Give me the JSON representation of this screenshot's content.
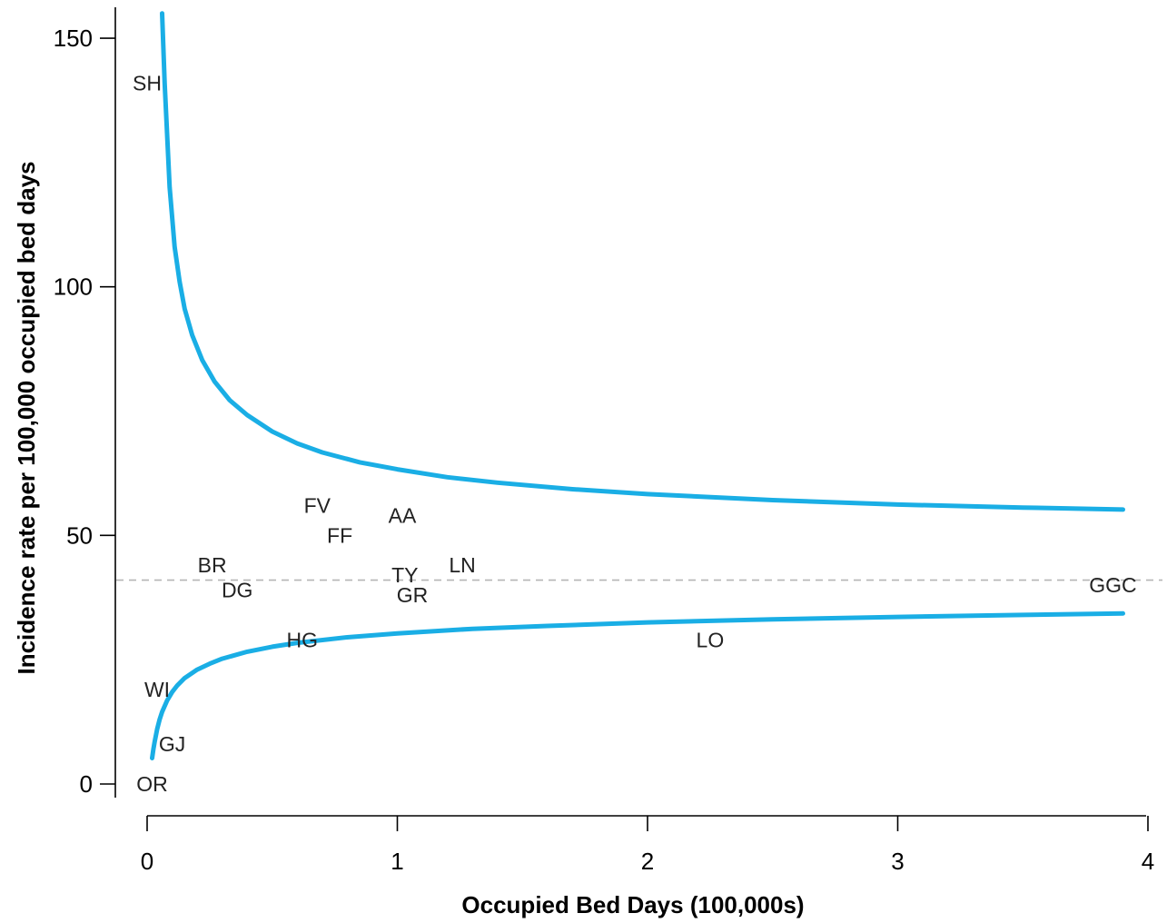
{
  "chart_data": {
    "type": "scatter",
    "subtype": "funnel-plot",
    "title": "",
    "xlabel": "Occupied Bed Days (100,000s)",
    "ylabel": "Incidence rate per 100,000 occupied bed days",
    "xlim": [
      -0.13,
      4.06
    ],
    "ylim": [
      -6,
      156
    ],
    "xticks": [
      0,
      1,
      2,
      3,
      4
    ],
    "yticks": [
      0,
      50,
      100,
      150
    ],
    "mean_rate": 41,
    "points": [
      {
        "label": "SH",
        "x": 0.0,
        "y": 141
      },
      {
        "label": "FV",
        "x": 0.68,
        "y": 56
      },
      {
        "label": "AA",
        "x": 1.02,
        "y": 54
      },
      {
        "label": "FF",
        "x": 0.77,
        "y": 50
      },
      {
        "label": "BR",
        "x": 0.26,
        "y": 44
      },
      {
        "label": "LN",
        "x": 1.26,
        "y": 44
      },
      {
        "label": "TY",
        "x": 1.03,
        "y": 42
      },
      {
        "label": "DG",
        "x": 0.36,
        "y": 39
      },
      {
        "label": "GR",
        "x": 1.06,
        "y": 38
      },
      {
        "label": "GGC",
        "x": 3.86,
        "y": 40
      },
      {
        "label": "HG",
        "x": 0.62,
        "y": 29
      },
      {
        "label": "LO",
        "x": 2.25,
        "y": 29
      },
      {
        "label": "WI",
        "x": 0.04,
        "y": 19
      },
      {
        "label": "GJ",
        "x": 0.1,
        "y": 8
      },
      {
        "label": "OR",
        "x": 0.02,
        "y": 0
      }
    ],
    "series": [
      {
        "name": "",
        "role": "upper-control-limit",
        "color": "#1aaee5",
        "x": [
          0.06,
          0.07,
          0.09,
          0.11,
          0.13,
          0.15,
          0.18,
          0.22,
          0.27,
          0.33,
          0.4,
          0.5,
          0.6,
          0.7,
          0.85,
          1.0,
          1.2,
          1.4,
          1.7,
          2.0,
          2.5,
          3.0,
          3.5,
          3.9
        ],
        "values": [
          155,
          141,
          120,
          108,
          101,
          95.6,
          90.3,
          85.3,
          80.9,
          77.2,
          74.2,
          70.9,
          68.5,
          66.7,
          64.7,
          63.3,
          61.7,
          60.6,
          59.3,
          58.3,
          57.1,
          56.2,
          55.6,
          55.2
        ]
      },
      {
        "name": "",
        "role": "lower-control-limit",
        "color": "#1aaee5",
        "x": [
          0.02,
          0.025,
          0.03,
          0.04,
          0.05,
          0.06,
          0.08,
          0.1,
          0.12,
          0.15,
          0.2,
          0.25,
          0.3,
          0.4,
          0.5,
          0.6,
          0.8,
          1.0,
          1.3,
          1.6,
          2.0,
          2.5,
          3.0,
          3.5,
          3.9
        ],
        "values": [
          5.2,
          7.0,
          8.5,
          11.0,
          13.0,
          14.5,
          16.8,
          18.5,
          19.8,
          21.3,
          23.0,
          24.2,
          25.2,
          26.6,
          27.6,
          28.4,
          29.5,
          30.3,
          31.2,
          31.8,
          32.5,
          33.1,
          33.6,
          34.0,
          34.3
        ]
      }
    ]
  }
}
